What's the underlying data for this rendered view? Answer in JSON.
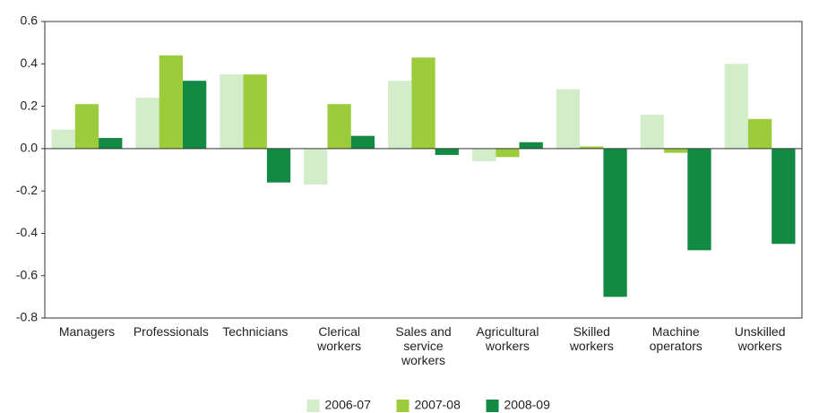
{
  "chart_data": {
    "type": "bar",
    "categories": [
      "Managers",
      "Professionals",
      "Technicians",
      "Clerical workers",
      "Sales and service workers",
      "Agricultural workers",
      "Skilled workers",
      "Machine operators",
      "Unskilled workers"
    ],
    "series": [
      {
        "name": "2006-07",
        "color": "#d3edca",
        "values": [
          0.09,
          0.24,
          0.35,
          -0.17,
          0.32,
          -0.06,
          0.28,
          0.16,
          0.4
        ]
      },
      {
        "name": "2007-08",
        "color": "#9ccc3c",
        "values": [
          0.21,
          0.44,
          0.35,
          0.21,
          0.43,
          -0.04,
          0.01,
          -0.02,
          0.14
        ]
      },
      {
        "name": "2008-09",
        "color": "#128a43",
        "values": [
          0.05,
          0.32,
          -0.16,
          0.06,
          -0.03,
          0.03,
          -0.7,
          -0.48,
          -0.45
        ]
      }
    ],
    "ylim": [
      -0.8,
      0.6
    ],
    "yticks": [
      -0.8,
      -0.6,
      -0.4,
      -0.2,
      {
        "value": 0,
        "label": "0.0"
      },
      0.2,
      0.4,
      0.6
    ],
    "legend": "bottom"
  }
}
